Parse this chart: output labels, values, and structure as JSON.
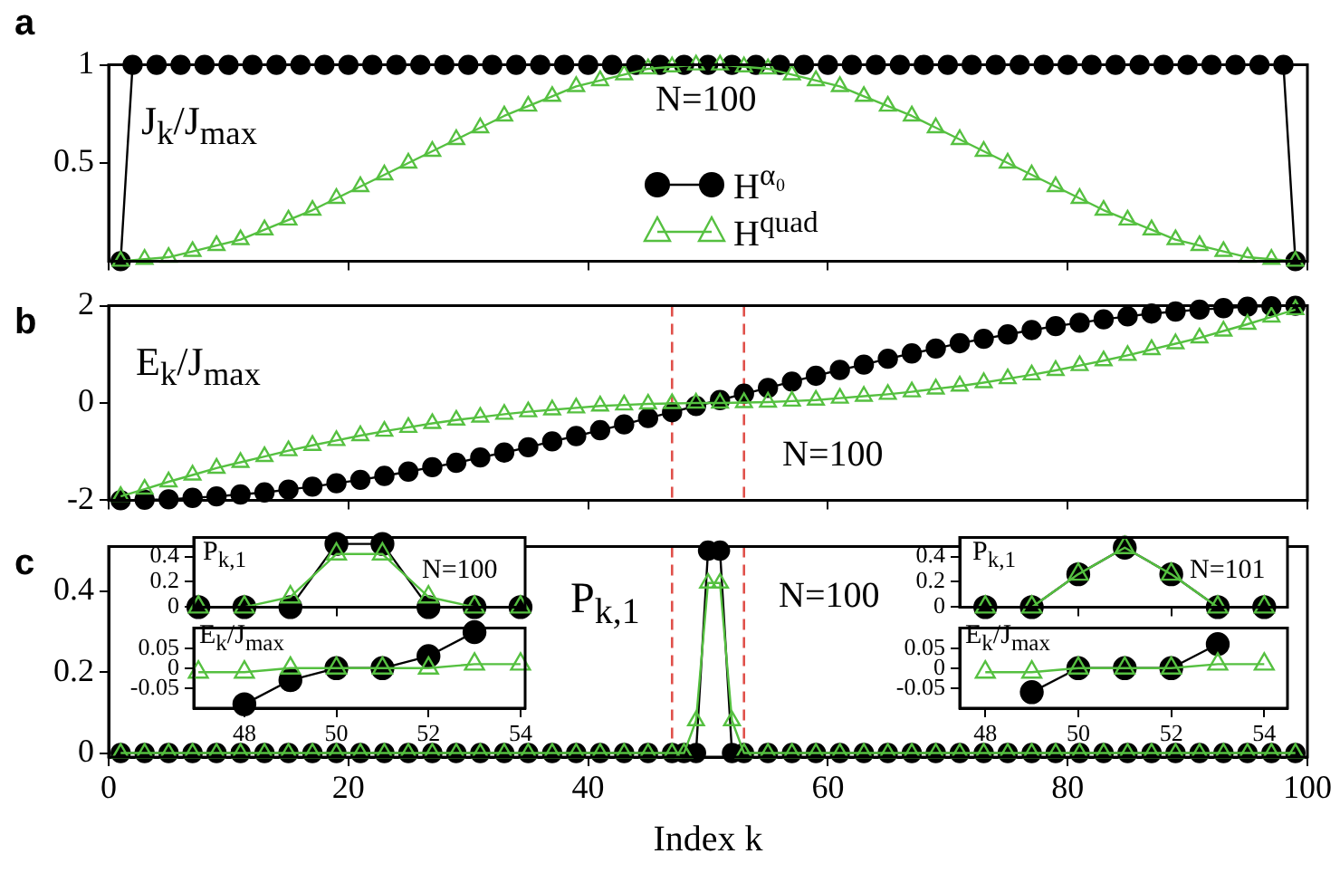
{
  "chart_data": [
    {
      "type": "line",
      "title": "a",
      "xlim": [
        0,
        100
      ],
      "xticks": [
        0,
        20,
        40,
        60,
        80,
        100
      ],
      "ylim": [
        0,
        1
      ],
      "yticks": [
        0.5,
        1
      ],
      "tick_labels": "y",
      "legend": "center",
      "annotations": [
        "J$_{k}$/J$_{max}$",
        "N=100"
      ],
      "series": [
        {
          "name": "H$^{α₀}$",
          "color": "#000000",
          "marker": "circle",
          "x": [
            1,
            2,
            4,
            6,
            8,
            10,
            12,
            14,
            16,
            18,
            20,
            22,
            24,
            26,
            28,
            30,
            32,
            34,
            36,
            38,
            40,
            42,
            44,
            46,
            48,
            50,
            52,
            54,
            56,
            58,
            60,
            62,
            64,
            66,
            68,
            70,
            72,
            74,
            76,
            78,
            80,
            82,
            84,
            86,
            88,
            90,
            92,
            94,
            96,
            98,
            99
          ],
          "values": [
            0,
            1,
            1,
            1,
            1,
            1,
            1,
            1,
            1,
            1,
            1,
            1,
            1,
            1,
            1,
            1,
            1,
            1,
            1,
            1,
            1,
            1,
            1,
            1,
            1,
            1,
            1,
            1,
            1,
            1,
            1,
            1,
            1,
            1,
            1,
            1,
            1,
            1,
            1,
            1,
            1,
            1,
            1,
            1,
            1,
            1,
            1,
            1,
            1,
            1,
            0
          ]
        },
        {
          "name": "H$^{quad}$",
          "color": "#55c040",
          "marker": "triangle",
          "x": [
            1,
            3,
            5,
            7,
            9,
            11,
            13,
            15,
            17,
            19,
            21,
            23,
            25,
            27,
            29,
            31,
            33,
            35,
            37,
            39,
            41,
            43,
            45,
            47,
            49,
            51,
            53,
            55,
            57,
            59,
            61,
            63,
            65,
            67,
            69,
            71,
            73,
            75,
            77,
            79,
            81,
            83,
            85,
            87,
            89,
            91,
            93,
            95,
            97,
            99
          ],
          "values": [
            0,
            0.01,
            0.02,
            0.05,
            0.08,
            0.11,
            0.16,
            0.21,
            0.26,
            0.32,
            0.38,
            0.44,
            0.5,
            0.56,
            0.62,
            0.68,
            0.74,
            0.79,
            0.84,
            0.89,
            0.92,
            0.95,
            0.98,
            0.99,
            1,
            1,
            0.99,
            0.98,
            0.95,
            0.92,
            0.89,
            0.84,
            0.79,
            0.74,
            0.68,
            0.62,
            0.56,
            0.5,
            0.44,
            0.38,
            0.32,
            0.26,
            0.21,
            0.16,
            0.11,
            0.08,
            0.05,
            0.02,
            0.01,
            0
          ]
        }
      ]
    },
    {
      "type": "line",
      "title": "b",
      "xlim": [
        0,
        100
      ],
      "xticks": [
        0,
        20,
        40,
        60,
        80,
        100
      ],
      "ylim": [
        -2,
        2
      ],
      "yticks": [
        -2,
        0,
        2
      ],
      "tick_labels": "y",
      "annotations": [
        "E$_{k}$/J$_{max}$",
        "N=100"
      ],
      "ref_lines": [
        {
          "axis": "x",
          "value": 47,
          "color": "#e0504a",
          "line_style": "dashed"
        },
        {
          "axis": "x",
          "value": 53,
          "color": "#e0504a",
          "line_style": "dashed"
        }
      ],
      "x": [
        1,
        3,
        5,
        7,
        9,
        11,
        13,
        15,
        17,
        19,
        21,
        23,
        25,
        27,
        29,
        31,
        33,
        35,
        37,
        39,
        41,
        43,
        45,
        47,
        49,
        51,
        53,
        55,
        57,
        59,
        61,
        63,
        65,
        67,
        69,
        71,
        73,
        75,
        77,
        79,
        81,
        83,
        85,
        87,
        89,
        91,
        93,
        95,
        97,
        99
      ],
      "series": [
        {
          "color": "#000000",
          "marker": "circle",
          "values": [
            -2,
            -1.99,
            -1.98,
            -1.95,
            -1.92,
            -1.88,
            -1.84,
            -1.78,
            -1.72,
            -1.65,
            -1.58,
            -1.5,
            -1.41,
            -1.32,
            -1.23,
            -1.12,
            -1.02,
            -0.91,
            -0.79,
            -0.68,
            -0.56,
            -0.44,
            -0.31,
            -0.19,
            -0.06,
            0.06,
            0.19,
            0.31,
            0.44,
            0.56,
            0.68,
            0.79,
            0.91,
            1.02,
            1.12,
            1.23,
            1.32,
            1.41,
            1.5,
            1.58,
            1.65,
            1.72,
            1.78,
            1.84,
            1.88,
            1.92,
            1.95,
            1.98,
            1.99,
            2
          ]
        },
        {
          "color": "#55c040",
          "marker": "triangle",
          "values": [
            -1.92,
            -1.77,
            -1.62,
            -1.48,
            -1.34,
            -1.22,
            -1.1,
            -0.98,
            -0.87,
            -0.77,
            -0.67,
            -0.58,
            -0.5,
            -0.42,
            -0.35,
            -0.29,
            -0.23,
            -0.18,
            -0.14,
            -0.1,
            -0.06,
            -0.04,
            -0.02,
            -0.01,
            0,
            0,
            0.01,
            0.02,
            0.04,
            0.06,
            0.1,
            0.14,
            0.18,
            0.23,
            0.29,
            0.35,
            0.42,
            0.5,
            0.58,
            0.67,
            0.77,
            0.87,
            0.98,
            1.1,
            1.22,
            1.34,
            1.48,
            1.62,
            1.77,
            1.92
          ]
        }
      ]
    },
    {
      "type": "line",
      "title": "c",
      "xlabel": "Index k",
      "xlim": [
        0,
        100
      ],
      "xticks": [
        0,
        20,
        40,
        60,
        80,
        100
      ],
      "ylim": [
        -0.01,
        0.51
      ],
      "yticks": [
        0,
        0.2,
        0.4
      ],
      "annotations": [
        "P$_{k,1}$",
        "N=100"
      ],
      "ref_lines": [
        {
          "axis": "x",
          "value": 47,
          "color": "#e0504a",
          "line_style": "dashed"
        },
        {
          "axis": "x",
          "value": 53,
          "color": "#e0504a",
          "line_style": "dashed"
        }
      ],
      "x": [
        1,
        3,
        5,
        7,
        9,
        11,
        13,
        15,
        17,
        19,
        21,
        23,
        25,
        27,
        29,
        31,
        33,
        35,
        37,
        39,
        41,
        43,
        45,
        47,
        48,
        49,
        50,
        51,
        52,
        53,
        55,
        57,
        59,
        61,
        63,
        65,
        67,
        69,
        71,
        73,
        75,
        77,
        79,
        81,
        83,
        85,
        87,
        89,
        91,
        93,
        95,
        97,
        99
      ],
      "series": [
        {
          "color": "#000000",
          "marker": "circle",
          "values": [
            0,
            0,
            0,
            0,
            0,
            0,
            0,
            0,
            0,
            0,
            0,
            0,
            0,
            0,
            0,
            0,
            0,
            0,
            0,
            0,
            0,
            0,
            0,
            0,
            0,
            0,
            0.5,
            0.5,
            0,
            0,
            0,
            0,
            0,
            0,
            0,
            0,
            0,
            0,
            0,
            0,
            0,
            0,
            0,
            0,
            0,
            0,
            0,
            0,
            0,
            0,
            0,
            0,
            0
          ]
        },
        {
          "color": "#55c040",
          "marker": "triangle",
          "values": [
            0,
            0,
            0,
            0,
            0,
            0,
            0,
            0,
            0,
            0,
            0,
            0,
            0,
            0,
            0,
            0,
            0,
            0,
            0,
            0,
            0,
            0,
            0,
            0,
            0,
            0.08,
            0.42,
            0.42,
            0.08,
            0,
            0,
            0,
            0,
            0,
            0,
            0,
            0,
            0,
            0,
            0,
            0,
            0,
            0,
            0,
            0,
            0,
            0,
            0,
            0,
            0,
            0,
            0,
            0
          ]
        }
      ]
    },
    {
      "type": "line",
      "xlim": [
        46.9,
        54.1
      ],
      "xticks": [
        48,
        50,
        52,
        54
      ],
      "ylim": [
        0,
        0.55
      ],
      "yticks": [
        0,
        0.2,
        0.4
      ],
      "tick_labels": "y",
      "annotations": [
        "P$_{k,1}$",
        "N=100"
      ],
      "x": [
        47,
        48,
        49,
        50,
        51,
        52,
        53,
        54
      ],
      "series": [
        {
          "color": "#000000",
          "marker": "circle",
          "values": [
            0,
            0,
            0,
            0.5,
            0.5,
            0,
            0,
            0
          ]
        },
        {
          "color": "#55c040",
          "marker": "triangle",
          "values": [
            0,
            0,
            0.08,
            0.42,
            0.42,
            0.08,
            0,
            0
          ]
        }
      ]
    },
    {
      "type": "line",
      "xlim": [
        46.9,
        54.1
      ],
      "xticks": [
        48,
        50,
        52,
        54
      ],
      "ylim": [
        -0.1,
        0.1
      ],
      "yticks": [
        -0.05,
        0,
        0.05
      ],
      "annotations": [
        "E$_{k}$/J$_{max}$"
      ],
      "x": [
        47,
        48,
        49,
        50,
        51,
        52,
        53,
        54
      ],
      "series": [
        {
          "color": "#000000",
          "marker": "circle",
          "values": [
            null,
            -0.09,
            -0.03,
            0,
            0,
            0.03,
            0.09,
            null
          ]
        },
        {
          "color": "#55c040",
          "marker": "triangle",
          "values": [
            -0.01,
            -0.01,
            0,
            0,
            0,
            0,
            0.01,
            0.01
          ]
        }
      ]
    },
    {
      "type": "line",
      "xlim": [
        47.45,
        54.5
      ],
      "xticks": [
        48,
        50,
        52,
        54
      ],
      "ylim": [
        0,
        0.55
      ],
      "yticks": [
        0,
        0.2,
        0.4
      ],
      "tick_labels": "y",
      "annotations": [
        "P$_{k,1}$",
        "N=101"
      ],
      "x": [
        48,
        49,
        50,
        51,
        52,
        53,
        54
      ],
      "series": [
        {
          "color": "#000000",
          "marker": "circle",
          "values": [
            0,
            0,
            0.26,
            0.47,
            0.26,
            0,
            0
          ]
        },
        {
          "color": "#55c040",
          "marker": "triangle",
          "values": [
            0,
            0,
            0.26,
            0.47,
            0.26,
            0,
            0
          ]
        }
      ]
    },
    {
      "type": "line",
      "xlim": [
        47.45,
        54.5
      ],
      "xticks": [
        48,
        50,
        52,
        54
      ],
      "ylim": [
        -0.1,
        0.1
      ],
      "yticks": [
        -0.05,
        0,
        0.05
      ],
      "annotations": [
        "E$_{k}$/J$_{max}$"
      ],
      "x": [
        48,
        49,
        50,
        51,
        52,
        53,
        54
      ],
      "series": [
        {
          "color": "#000000",
          "marker": "circle",
          "values": [
            null,
            -0.06,
            0,
            0,
            0,
            0.06,
            null
          ]
        },
        {
          "color": "#55c040",
          "marker": "triangle",
          "values": [
            -0.01,
            -0.01,
            0,
            0,
            0,
            0.01,
            0.01
          ]
        }
      ]
    }
  ]
}
